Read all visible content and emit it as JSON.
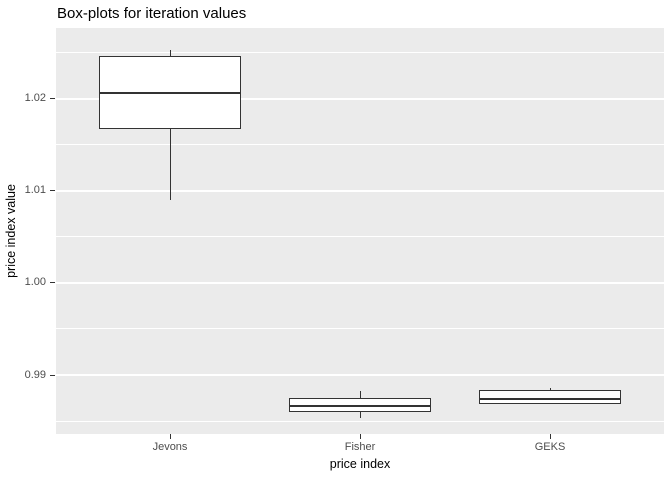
{
  "chart_data": {
    "type": "boxplot",
    "title": "Box-plots for iteration values",
    "xlabel": "price index",
    "ylabel": "price index value",
    "categories": [
      "Jevons",
      "Fisher",
      "GEKS"
    ],
    "series": [
      {
        "name": "Jevons",
        "whisker_low": 1.009,
        "q1": 1.0167,
        "median": 1.0206,
        "q3": 1.0246,
        "whisker_high": 1.0253
      },
      {
        "name": "Fisher",
        "whisker_low": 0.9853,
        "q1": 0.986,
        "median": 0.9866,
        "q3": 0.9875,
        "whisker_high": 0.9883
      },
      {
        "name": "GEKS",
        "whisker_low": 0.9868,
        "q1": 0.9868,
        "median": 0.9874,
        "q3": 0.9884,
        "whisker_high": 0.9886
      }
    ],
    "y_ticks": [
      0.99,
      1.0,
      1.01,
      1.02
    ],
    "y_tick_labels": [
      "0.99",
      "1.00",
      "1.01",
      "1.02"
    ],
    "y_minor_ticks": [
      0.985,
      0.995,
      1.005,
      1.015,
      1.025
    ],
    "ylim": [
      0.9836,
      1.02765
    ],
    "grid": true,
    "legend": "none",
    "colors": {
      "panel_bg": "#EBEBEB",
      "grid": "#FFFFFF",
      "box_fill": "#FFFFFF",
      "box_border": "#333333",
      "axis_text": "#4D4D4D",
      "title_text": "#000000",
      "figure_bg": "#FFFFFF"
    }
  }
}
